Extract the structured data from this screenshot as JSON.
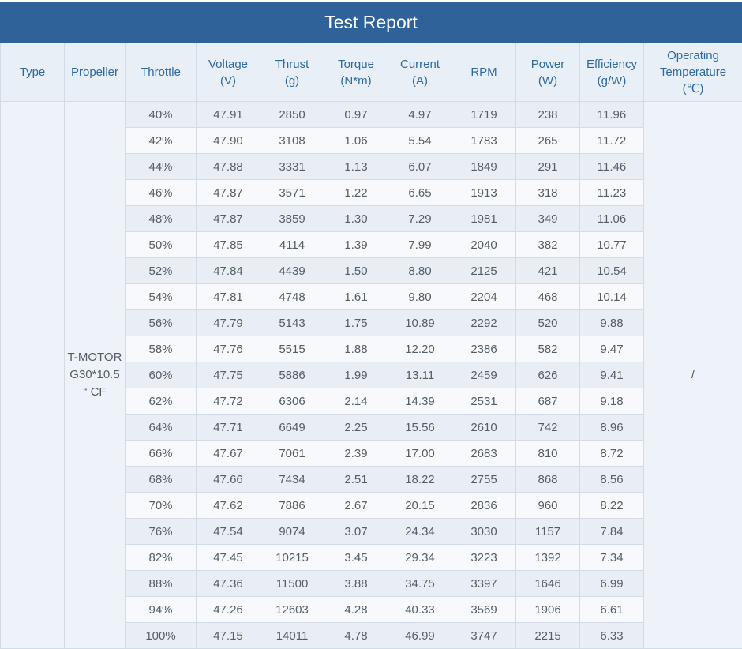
{
  "title": "Test Report",
  "columns": {
    "type": "Type",
    "propeller": "Propeller",
    "throttle": "Throttle",
    "voltage": [
      "Voltage",
      "(V)"
    ],
    "thrust": [
      "Thrust",
      "(g)"
    ],
    "torque": [
      "Torque",
      "(N*m)"
    ],
    "current": [
      "Current",
      "(A)"
    ],
    "rpm": "RPM",
    "power": [
      "Power",
      "(W)"
    ],
    "efficiency": [
      "Efficiency",
      "(g/W)"
    ],
    "temperature": [
      "Operating",
      "Temperature",
      "(℃)"
    ]
  },
  "type_value": "",
  "propeller_value": [
    "T-MOTOR",
    "G30*10.5",
    "“ CF"
  ],
  "temperature_value": "/",
  "rows": [
    [
      "40%",
      "47.91",
      "2850",
      "0.97",
      "4.97",
      "1719",
      "238",
      "11.96"
    ],
    [
      "42%",
      "47.90",
      "3108",
      "1.06",
      "5.54",
      "1783",
      "265",
      "11.72"
    ],
    [
      "44%",
      "47.88",
      "3331",
      "1.13",
      "6.07",
      "1849",
      "291",
      "11.46"
    ],
    [
      "46%",
      "47.87",
      "3571",
      "1.22",
      "6.65",
      "1913",
      "318",
      "11.23"
    ],
    [
      "48%",
      "47.87",
      "3859",
      "1.30",
      "7.29",
      "1981",
      "349",
      "11.06"
    ],
    [
      "50%",
      "47.85",
      "4114",
      "1.39",
      "7.99",
      "2040",
      "382",
      "10.77"
    ],
    [
      "52%",
      "47.84",
      "4439",
      "1.50",
      "8.80",
      "2125",
      "421",
      "10.54"
    ],
    [
      "54%",
      "47.81",
      "4748",
      "1.61",
      "9.80",
      "2204",
      "468",
      "10.14"
    ],
    [
      "56%",
      "47.79",
      "5143",
      "1.75",
      "10.89",
      "2292",
      "520",
      "9.88"
    ],
    [
      "58%",
      "47.76",
      "5515",
      "1.88",
      "12.20",
      "2386",
      "582",
      "9.47"
    ],
    [
      "60%",
      "47.75",
      "5886",
      "1.99",
      "13.11",
      "2459",
      "626",
      "9.41"
    ],
    [
      "62%",
      "47.72",
      "6306",
      "2.14",
      "14.39",
      "2531",
      "687",
      "9.18"
    ],
    [
      "64%",
      "47.71",
      "6649",
      "2.25",
      "15.56",
      "2610",
      "742",
      "8.96"
    ],
    [
      "66%",
      "47.67",
      "7061",
      "2.39",
      "17.00",
      "2683",
      "810",
      "8.72"
    ],
    [
      "68%",
      "47.66",
      "7434",
      "2.51",
      "18.22",
      "2755",
      "868",
      "8.56"
    ],
    [
      "70%",
      "47.62",
      "7886",
      "2.67",
      "20.15",
      "2836",
      "960",
      "8.22"
    ],
    [
      "76%",
      "47.54",
      "9074",
      "3.07",
      "24.34",
      "3030",
      "1157",
      "7.84"
    ],
    [
      "82%",
      "47.45",
      "10215",
      "3.45",
      "29.34",
      "3223",
      "1392",
      "7.34"
    ],
    [
      "88%",
      "47.36",
      "11500",
      "3.88",
      "34.75",
      "3397",
      "1646",
      "6.99"
    ],
    [
      "94%",
      "47.26",
      "12603",
      "4.28",
      "40.33",
      "3569",
      "1906",
      "6.61"
    ],
    [
      "100%",
      "47.15",
      "14011",
      "4.78",
      "46.99",
      "3747",
      "2215",
      "6.33"
    ]
  ],
  "colors": {
    "title_bar": "#2f6299",
    "header_text": "#2f6a9f",
    "header_bg": "#e8eff7",
    "row_band_a": "#e9eef5",
    "row_band_b": "#f7f9fc",
    "cell_text": "#555d66",
    "border": "#d3dbe6"
  }
}
